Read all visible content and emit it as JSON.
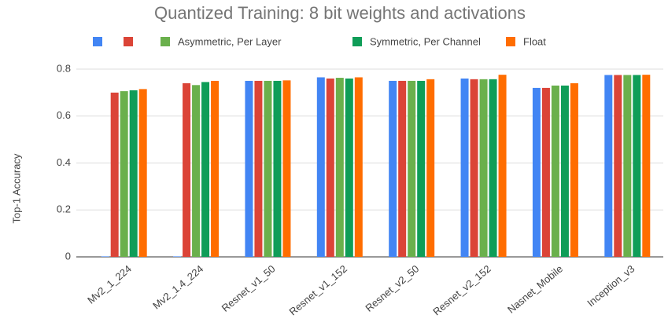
{
  "chart_data": {
    "type": "bar",
    "title": "Quantized Training: 8 bit weights and activations",
    "y_label": "Top-1 Accuracy",
    "categories": [
      "Mv2_1_224",
      "Mv2_1.4_224",
      "Resnet_v1_50",
      "Resnet_v1_152",
      "Resnet_v2_50",
      "Resnet_v2_152",
      "Nasnet_Mobile",
      "Inception_v3"
    ],
    "series": [
      {
        "color": "#4285f4",
        "values": [
          0.002,
          0.002,
          0.75,
          0.765,
          0.75,
          0.76,
          0.72,
          0.775
        ]
      },
      {
        "color": "#db4437",
        "values": [
          0.7,
          0.74,
          0.75,
          0.76,
          0.75,
          0.757,
          0.72,
          0.775
        ]
      },
      {
        "name": "Asymmetric, Per Layer",
        "color": "#6ab04c",
        "values": [
          0.706,
          0.732,
          0.75,
          0.763,
          0.75,
          0.757,
          0.73,
          0.775
        ]
      },
      {
        "name": "Symmetric, Per Channel",
        "color": "#0f9d58",
        "values": [
          0.71,
          0.745,
          0.75,
          0.76,
          0.75,
          0.757,
          0.73,
          0.775
        ]
      },
      {
        "name": "Float",
        "color": "#ff6d00",
        "values": [
          0.715,
          0.75,
          0.752,
          0.765,
          0.757,
          0.776,
          0.74,
          0.776
        ]
      }
    ],
    "ylim": [
      0,
      0.8
    ],
    "yticks": [
      0,
      0.2,
      0.4,
      0.6,
      0.8
    ],
    "grid": true,
    "legend": "top"
  }
}
